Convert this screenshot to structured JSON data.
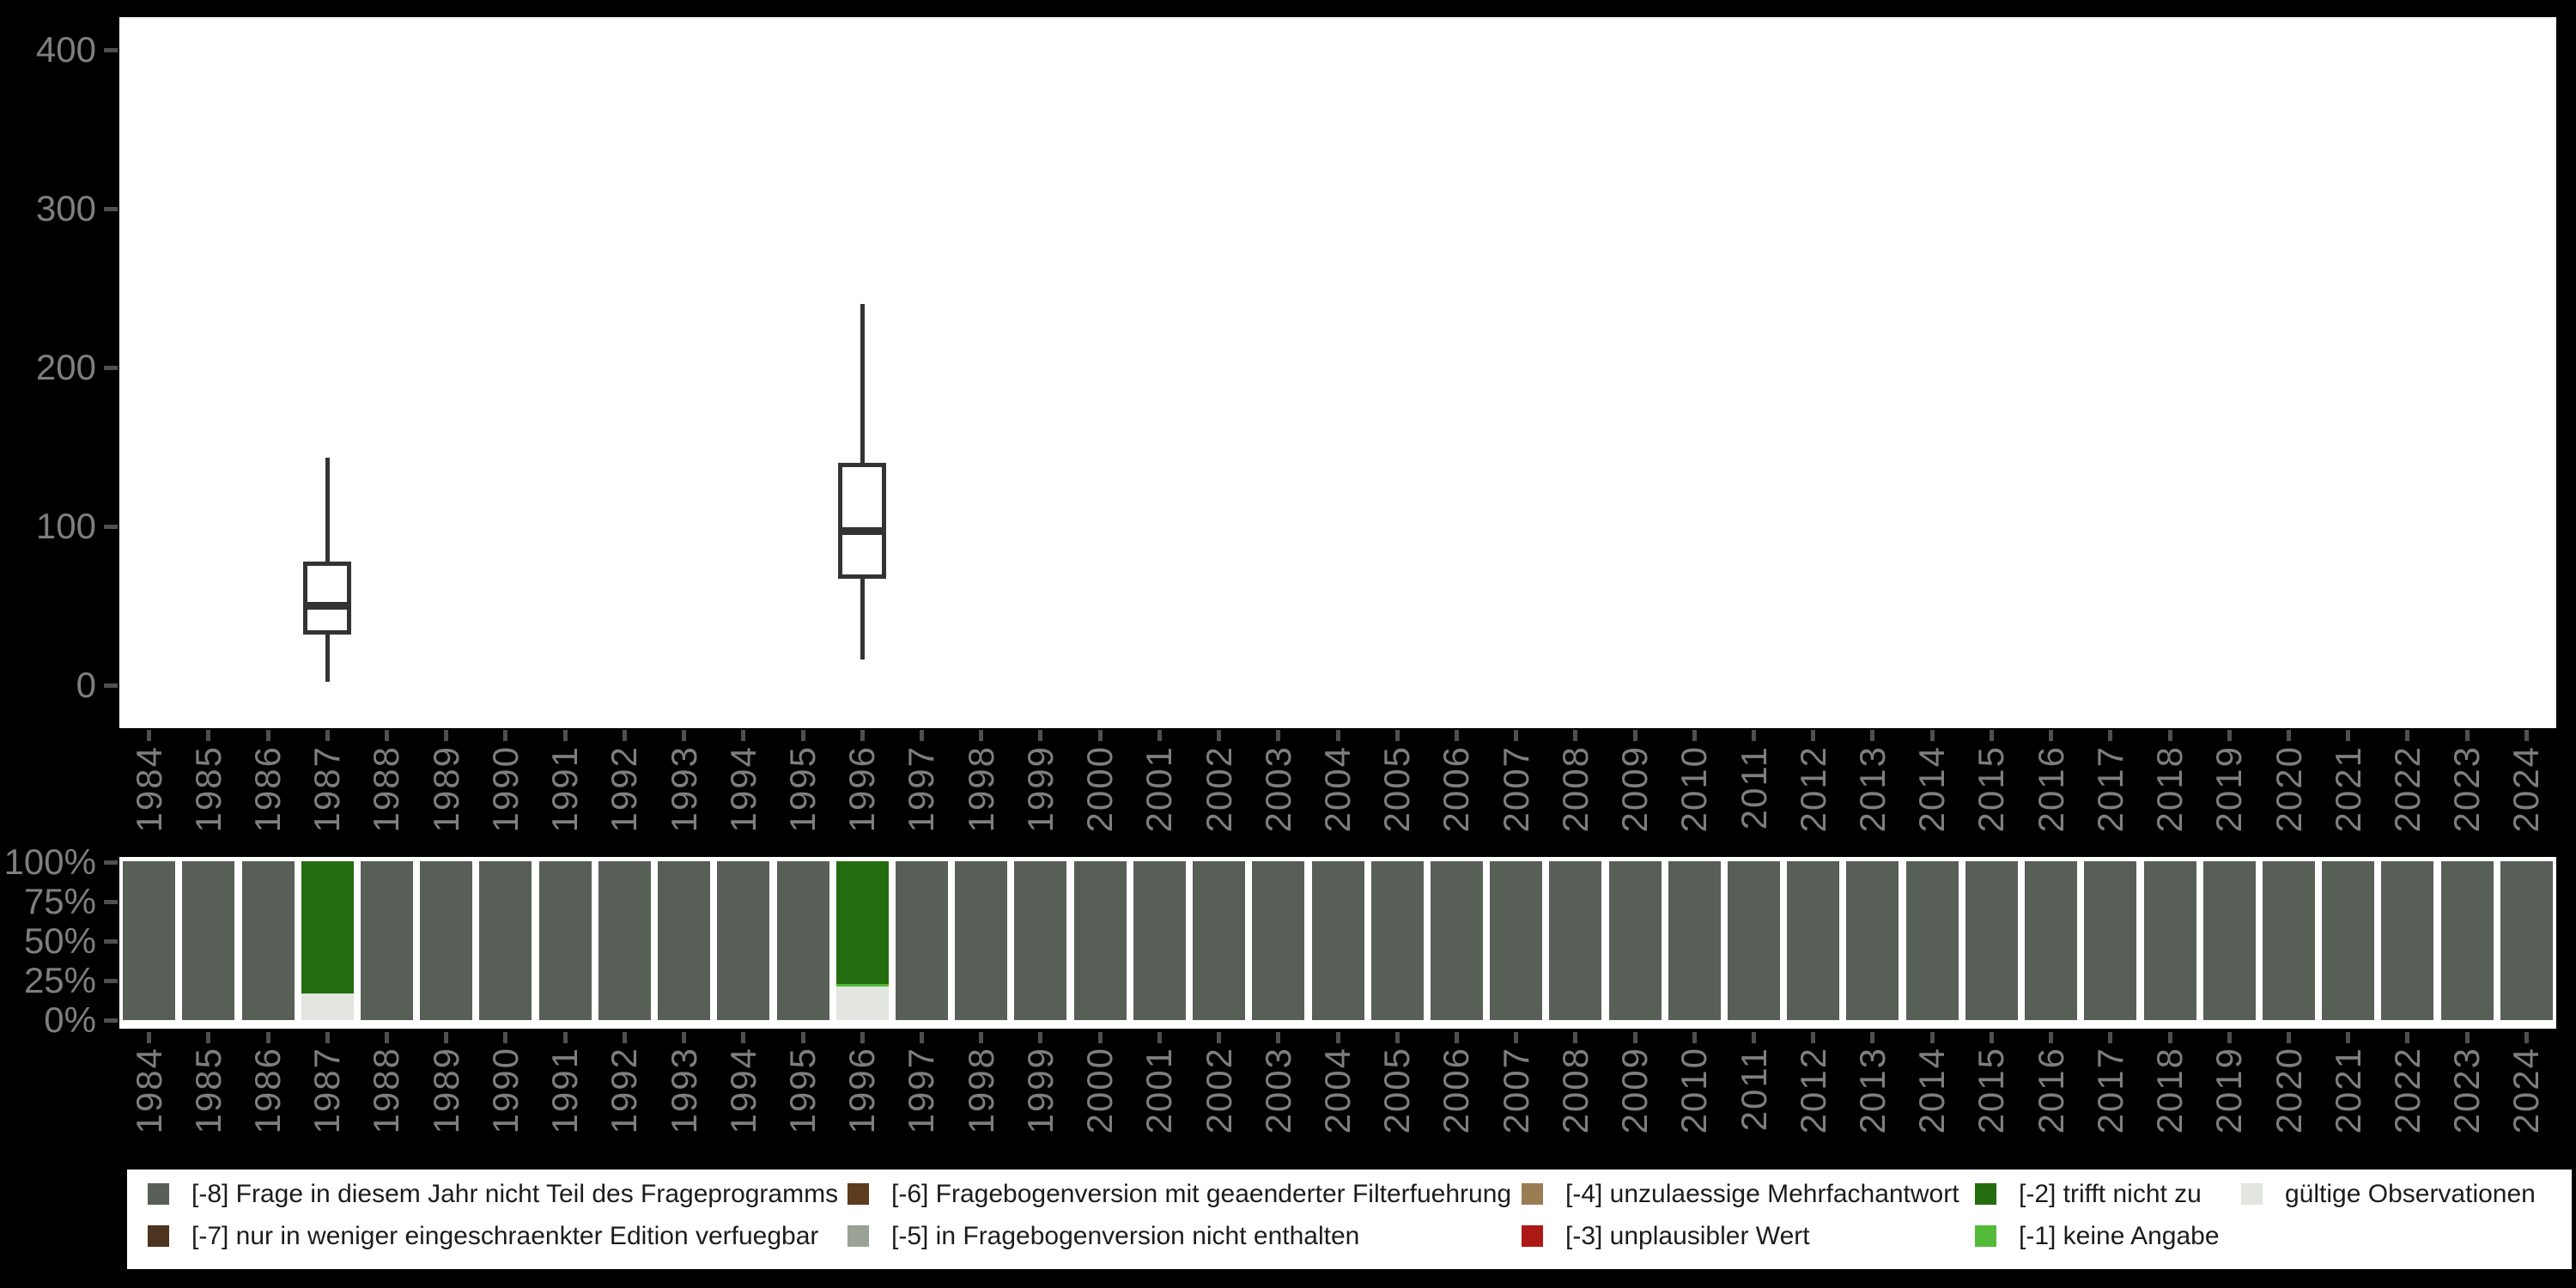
{
  "background": "#000000",
  "palette": {
    "-8": {
      "color": "#585f57",
      "label": "[-8] Frage in diesem Jahr nicht Teil des Frageprogramms"
    },
    "-7": {
      "color": "#4d3420",
      "label": "[-7] nur in weniger eingeschraenkter Edition verfuegbar"
    },
    "-6": {
      "color": "#5c3c1d",
      "label": "[-6] Fragebogenversion mit geaenderter Filterfuehrung"
    },
    "-5": {
      "color": "#9aa296",
      "label": "[-5] in Fragebogenversion nicht enthalten"
    },
    "-4": {
      "color": "#9b7d53",
      "label": "[-4] unzulaessige Mehrfachantwort"
    },
    "-3": {
      "color": "#ad1a15",
      "label": "[-3] unplausibler Wert"
    },
    "-2": {
      "color": "#236c10",
      "label": "[-2] trifft nicht zu"
    },
    "-1": {
      "color": "#53bb39",
      "label": "[-1] keine Angabe"
    },
    "valid": {
      "color": "#e3e6e0",
      "label": "gültige Observationen"
    },
    "box_stroke": "#333333",
    "axis_text": "#7e7e7e",
    "tick": "#4f4f4f",
    "panel": "#ffffff"
  },
  "legend": {
    "row1": [
      "-8",
      "-6",
      "-4",
      "-2",
      "valid"
    ],
    "row2": [
      "-7",
      "-5",
      "-3",
      "-1"
    ]
  },
  "chart_data": [
    {
      "type": "boxplot",
      "title": "",
      "xlabel": "",
      "ylabel": "",
      "x_categories": [
        "1984",
        "1985",
        "1986",
        "1987",
        "1988",
        "1989",
        "1990",
        "1991",
        "1992",
        "1993",
        "1994",
        "1995",
        "1996",
        "1997",
        "1998",
        "1999",
        "2000",
        "2001",
        "2002",
        "2003",
        "2004",
        "2005",
        "2006",
        "2007",
        "2008",
        "2009",
        "2010",
        "2011",
        "2012",
        "2013",
        "2014",
        "2015",
        "2016",
        "2017",
        "2018",
        "2019",
        "2020",
        "2021",
        "2022",
        "2023",
        "2024"
      ],
      "y_ticks": [
        0,
        100,
        200,
        300,
        400
      ],
      "y_range": [
        0,
        420
      ],
      "grid": false,
      "boxes": [
        {
          "year": "1987",
          "min": 2,
          "q1": 32,
          "median": 50,
          "q3": 78,
          "max": 143
        },
        {
          "year": "1996",
          "min": 16,
          "q1": 67,
          "median": 97,
          "q3": 140,
          "max": 240
        }
      ]
    },
    {
      "type": "bar",
      "stacked": true,
      "unit": "percent",
      "title": "",
      "xlabel": "",
      "ylabel": "",
      "x_categories": [
        "1984",
        "1985",
        "1986",
        "1987",
        "1988",
        "1989",
        "1990",
        "1991",
        "1992",
        "1993",
        "1994",
        "1995",
        "1996",
        "1997",
        "1998",
        "1999",
        "2000",
        "2001",
        "2002",
        "2003",
        "2004",
        "2005",
        "2006",
        "2007",
        "2008",
        "2009",
        "2010",
        "2011",
        "2012",
        "2013",
        "2014",
        "2015",
        "2016",
        "2017",
        "2018",
        "2019",
        "2020",
        "2021",
        "2022",
        "2023",
        "2024"
      ],
      "y_ticks_pct": [
        0,
        25,
        50,
        75,
        100
      ],
      "grid": false,
      "legend_position": "bottom",
      "bars": [
        {
          "year": "1984",
          "segments": [
            [
              "-8",
              100
            ]
          ]
        },
        {
          "year": "1985",
          "segments": [
            [
              "-8",
              100
            ]
          ]
        },
        {
          "year": "1986",
          "segments": [
            [
              "-8",
              100
            ]
          ]
        },
        {
          "year": "1987",
          "segments": [
            [
              "-2",
              83
            ],
            [
              "valid",
              17
            ]
          ]
        },
        {
          "year": "1988",
          "segments": [
            [
              "-8",
              100
            ]
          ]
        },
        {
          "year": "1989",
          "segments": [
            [
              "-8",
              100
            ]
          ]
        },
        {
          "year": "1990",
          "segments": [
            [
              "-8",
              100
            ]
          ]
        },
        {
          "year": "1991",
          "segments": [
            [
              "-8",
              100
            ]
          ]
        },
        {
          "year": "1992",
          "segments": [
            [
              "-8",
              100
            ]
          ]
        },
        {
          "year": "1993",
          "segments": [
            [
              "-8",
              100
            ]
          ]
        },
        {
          "year": "1994",
          "segments": [
            [
              "-8",
              100
            ]
          ]
        },
        {
          "year": "1995",
          "segments": [
            [
              "-8",
              100
            ]
          ]
        },
        {
          "year": "1996",
          "segments": [
            [
              "-2",
              77.5
            ],
            [
              "-1",
              1.5
            ],
            [
              "valid",
              21
            ]
          ]
        },
        {
          "year": "1997",
          "segments": [
            [
              "-8",
              100
            ]
          ]
        },
        {
          "year": "1998",
          "segments": [
            [
              "-8",
              100
            ]
          ]
        },
        {
          "year": "1999",
          "segments": [
            [
              "-8",
              100
            ]
          ]
        },
        {
          "year": "2000",
          "segments": [
            [
              "-8",
              100
            ]
          ]
        },
        {
          "year": "2001",
          "segments": [
            [
              "-8",
              100
            ]
          ]
        },
        {
          "year": "2002",
          "segments": [
            [
              "-8",
              100
            ]
          ]
        },
        {
          "year": "2003",
          "segments": [
            [
              "-8",
              100
            ]
          ]
        },
        {
          "year": "2004",
          "segments": [
            [
              "-8",
              100
            ]
          ]
        },
        {
          "year": "2005",
          "segments": [
            [
              "-8",
              100
            ]
          ]
        },
        {
          "year": "2006",
          "segments": [
            [
              "-8",
              100
            ]
          ]
        },
        {
          "year": "2007",
          "segments": [
            [
              "-8",
              100
            ]
          ]
        },
        {
          "year": "2008",
          "segments": [
            [
              "-8",
              100
            ]
          ]
        },
        {
          "year": "2009",
          "segments": [
            [
              "-8",
              100
            ]
          ]
        },
        {
          "year": "2010",
          "segments": [
            [
              "-8",
              100
            ]
          ]
        },
        {
          "year": "2011",
          "segments": [
            [
              "-8",
              100
            ]
          ]
        },
        {
          "year": "2012",
          "segments": [
            [
              "-8",
              100
            ]
          ]
        },
        {
          "year": "2013",
          "segments": [
            [
              "-8",
              100
            ]
          ]
        },
        {
          "year": "2014",
          "segments": [
            [
              "-8",
              100
            ]
          ]
        },
        {
          "year": "2015",
          "segments": [
            [
              "-8",
              100
            ]
          ]
        },
        {
          "year": "2016",
          "segments": [
            [
              "-8",
              100
            ]
          ]
        },
        {
          "year": "2017",
          "segments": [
            [
              "-8",
              100
            ]
          ]
        },
        {
          "year": "2018",
          "segments": [
            [
              "-8",
              100
            ]
          ]
        },
        {
          "year": "2019",
          "segments": [
            [
              "-8",
              100
            ]
          ]
        },
        {
          "year": "2020",
          "segments": [
            [
              "-8",
              100
            ]
          ]
        },
        {
          "year": "2021",
          "segments": [
            [
              "-8",
              100
            ]
          ]
        },
        {
          "year": "2022",
          "segments": [
            [
              "-8",
              100
            ]
          ]
        },
        {
          "year": "2023",
          "segments": [
            [
              "-8",
              100
            ]
          ]
        },
        {
          "year": "2024",
          "segments": [
            [
              "-8",
              100
            ]
          ]
        }
      ]
    }
  ]
}
